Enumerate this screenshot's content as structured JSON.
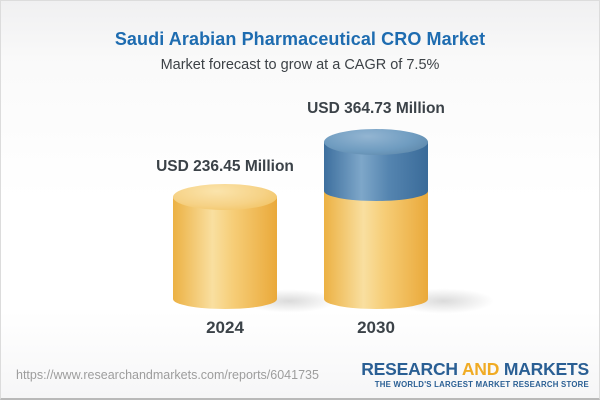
{
  "header": {
    "title": "Saudi Arabian Pharmaceutical CRO Market",
    "subtitle": "Market forecast to grow at a CAGR of 7.5%"
  },
  "chart_data": {
    "type": "bar",
    "bar_style": "3d-cylinder",
    "title": "Saudi Arabian Pharmaceutical CRO Market",
    "subtitle": "Market forecast to grow at a CAGR of 7.5%",
    "categories": [
      "2024",
      "2030"
    ],
    "values": [
      236.45,
      364.73
    ],
    "value_labels": [
      "USD 236.45 Million",
      "USD 364.73 Million"
    ],
    "unit": "USD Million",
    "cagr_percent": 7.5,
    "legend_position": "none",
    "grid": false,
    "segments": [
      {
        "category": "2024",
        "parts": [
          {
            "color_name": "gold",
            "value": 236.45
          }
        ]
      },
      {
        "category": "2030",
        "parts": [
          {
            "color_name": "gold",
            "value": 236.45
          },
          {
            "color_name": "blue",
            "value": 128.28
          }
        ]
      }
    ],
    "colors": {
      "gold": "#f3c466",
      "blue": "#4d7ea9"
    }
  },
  "footer": {
    "url": "https://www.researchandmarkets.com/reports/6041735",
    "logo": {
      "word1": "RESEARCH",
      "word2": "AND",
      "word3": "MARKETS",
      "tagline": "THE WORLD'S LARGEST MARKET RESEARCH STORE"
    }
  },
  "colors": {
    "title_blue": "#1e6cb0",
    "text_dark": "#3b4248",
    "url_gray": "#9d9d9d",
    "logo_blue": "#2a5f94",
    "logo_gold": "#f0ab24",
    "bar_gold": "#f3c466",
    "bar_blue": "#4d7ea9"
  }
}
